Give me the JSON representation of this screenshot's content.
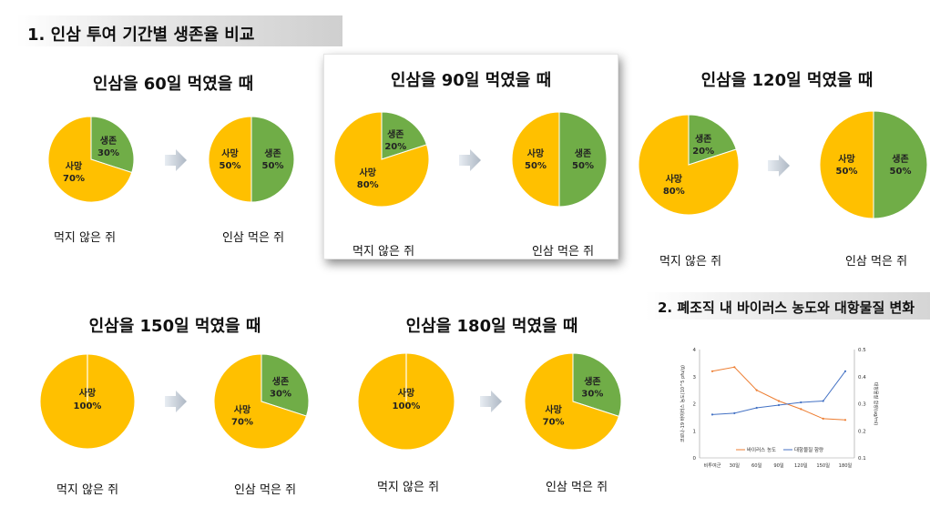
{
  "section1": {
    "title": "1. 인삼 투여 기간별 생존율 비교"
  },
  "panels": [
    {
      "title": "인삼을 60일 먹였을 때",
      "control_caption": "먹지 않은 쥐",
      "treated_caption": "인삼 먹은 쥐",
      "control_death_label": "사망",
      "control_death_value": "70%",
      "control_survive_label": "생존",
      "control_survive_value": "30%",
      "treated_death_label": "사망",
      "treated_death_value": "50%",
      "treated_survive_label": "생존",
      "treated_survive_value": "50%"
    },
    {
      "title": "인삼을 90일 먹였을 때",
      "control_caption": "먹지 않은 쥐",
      "treated_caption": "인삼 먹은 쥐",
      "control_death_label": "사망",
      "control_death_value": "80%",
      "control_survive_label": "생존",
      "control_survive_value": "20%",
      "treated_death_label": "사망",
      "treated_death_value": "50%",
      "treated_survive_label": "생존",
      "treated_survive_value": "50%"
    },
    {
      "title": "인삼을 120일 먹였을 때",
      "control_caption": "먹지 않은 쥐",
      "treated_caption": "인삼 먹은 쥐",
      "control_death_label": "사망",
      "control_death_value": "80%",
      "control_survive_label": "생존",
      "control_survive_value": "20%",
      "treated_death_label": "사망",
      "treated_death_value": "50%",
      "treated_survive_label": "생존",
      "treated_survive_value": "50%"
    },
    {
      "title": "인삼을 150일 먹였을 때",
      "control_caption": "먹지 않은 쥐",
      "treated_caption": "인삼 먹은 쥐",
      "control_death_label": "사망",
      "control_death_value": "100%",
      "control_survive_label": "",
      "control_survive_value": "",
      "treated_death_label": "사망",
      "treated_death_value": "70%",
      "treated_survive_label": "생존",
      "treated_survive_value": "30%"
    },
    {
      "title": "인삼을 180일 먹였을 때",
      "control_caption": "먹지 않은 쥐",
      "treated_caption": "인삼 먹은 쥐",
      "control_death_label": "사망",
      "control_death_value": "100%",
      "control_survive_label": "",
      "control_survive_value": "",
      "treated_death_label": "사망",
      "treated_death_value": "70%",
      "treated_survive_label": "생존",
      "treated_survive_value": "30%"
    }
  ],
  "section2": {
    "title": "2. 폐조직 내 바이러스 농도와 대항물질 변화",
    "left_axis_label": "코로나-19 바이러스 농도(10^5 pfu/g)",
    "right_axis_label": "대항물질 함량(ug/ml)",
    "legend_virus": "바이러스 농도",
    "legend_defense": "대항물질 함량"
  },
  "colors": {
    "death": "#FFC000",
    "survive": "#70AD47",
    "virus_line": "#ED7D31",
    "defense_line": "#4472C4"
  },
  "chart_data": [
    {
      "type": "pie",
      "title": "인삼을 60일 먹였을 때",
      "group": "먹지 않은 쥐",
      "categories": [
        "사망",
        "생존"
      ],
      "values": [
        70,
        30
      ]
    },
    {
      "type": "pie",
      "title": "인삼을 60일 먹였을 때",
      "group": "인삼 먹은 쥐",
      "categories": [
        "사망",
        "생존"
      ],
      "values": [
        50,
        50
      ]
    },
    {
      "type": "pie",
      "title": "인삼을 90일 먹였을 때",
      "group": "먹지 않은 쥐",
      "categories": [
        "사망",
        "생존"
      ],
      "values": [
        80,
        20
      ]
    },
    {
      "type": "pie",
      "title": "인삼을 90일 먹였을 때",
      "group": "인삼 먹은 쥐",
      "categories": [
        "사망",
        "생존"
      ],
      "values": [
        50,
        50
      ]
    },
    {
      "type": "pie",
      "title": "인삼을 120일 먹였을 때",
      "group": "먹지 않은 쥐",
      "categories": [
        "사망",
        "생존"
      ],
      "values": [
        80,
        20
      ]
    },
    {
      "type": "pie",
      "title": "인삼을 120일 먹였을 때",
      "group": "인삼 먹은 쥐",
      "categories": [
        "사망",
        "생존"
      ],
      "values": [
        50,
        50
      ]
    },
    {
      "type": "pie",
      "title": "인삼을 150일 먹였을 때",
      "group": "먹지 않은 쥐",
      "categories": [
        "사망"
      ],
      "values": [
        100
      ]
    },
    {
      "type": "pie",
      "title": "인삼을 150일 먹였을 때",
      "group": "인삼 먹은 쥐",
      "categories": [
        "사망",
        "생존"
      ],
      "values": [
        70,
        30
      ]
    },
    {
      "type": "pie",
      "title": "인삼을 180일 먹였을 때",
      "group": "먹지 않은 쥐",
      "categories": [
        "사망"
      ],
      "values": [
        100
      ]
    },
    {
      "type": "pie",
      "title": "인삼을 180일 먹였을 때",
      "group": "인삼 먹은 쥐",
      "categories": [
        "사망",
        "생존"
      ],
      "values": [
        70,
        30
      ]
    },
    {
      "type": "line",
      "title": "2. 폐조직 내 바이러스 농도와 대항물질 변화",
      "categories": [
        "비투여군",
        "30일",
        "60일",
        "90일",
        "120일",
        "150일",
        "180일"
      ],
      "series": [
        {
          "name": "바이러스 농도",
          "axis": "left",
          "values": [
            3.2,
            3.35,
            2.5,
            2.1,
            1.8,
            1.45,
            1.4
          ]
        },
        {
          "name": "대항물질 함량",
          "axis": "right",
          "values": [
            0.26,
            0.265,
            0.285,
            0.295,
            0.305,
            0.31,
            0.42
          ]
        }
      ],
      "ylim": [
        0,
        4
      ],
      "yticks": [
        0,
        1,
        2,
        3,
        4
      ],
      "y2lim": [
        0.1,
        0.5
      ],
      "y2ticks": [
        0.1,
        0.2,
        0.3,
        0.4,
        0.5
      ],
      "ylabel": "코로나-19 바이러스 농도(10^5 pfu/g)",
      "y2label": "대항물질 함량(ug/ml)",
      "legend": "bottom",
      "grid": false
    }
  ]
}
